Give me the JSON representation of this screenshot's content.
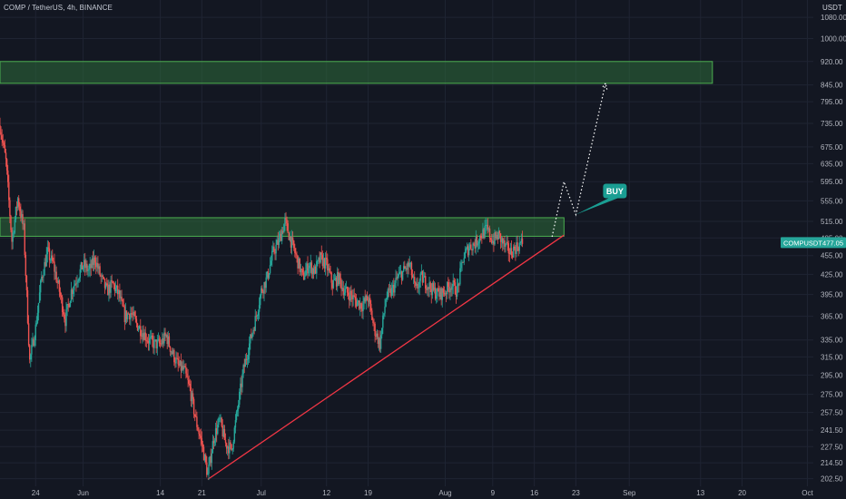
{
  "header": {
    "symbol_line": "COMP / TetherUS, 4h, BINANCE"
  },
  "axis": {
    "currency": "USDT"
  },
  "chart_data": {
    "type": "candlestick",
    "symbol": "COMPUSDT",
    "timeframe": "4h",
    "exchange": "BINANCE",
    "y_scale": "log",
    "ylim": [
      197,
      1150
    ],
    "y_ticks": [
      1080,
      1000,
      920,
      845,
      795,
      735,
      675,
      635,
      595,
      555,
      515,
      485,
      455,
      425,
      395,
      365,
      335,
      315,
      295,
      275,
      257.5,
      241.5,
      227.5,
      214.5,
      202.5
    ],
    "y_tick_labels": [
      "1080.00",
      "1000.00",
      "920.00",
      "845.00",
      "795.00",
      "735.00",
      "675.00",
      "635.00",
      "595.00",
      "555.00",
      "515.00",
      "485.00",
      "455.00",
      "425.00",
      "395.00",
      "365.00",
      "335.00",
      "315.00",
      "295.00",
      "275.00",
      "257.50",
      "241.50",
      "227.50",
      "214.50",
      "202.50"
    ],
    "x_range": [
      "2021-05-18",
      "2021-10-02"
    ],
    "x_ticks": [
      {
        "date": "2021-05-24",
        "label": "24"
      },
      {
        "date": "2021-06-01",
        "label": "Jun"
      },
      {
        "date": "2021-06-14",
        "label": "14"
      },
      {
        "date": "2021-06-21",
        "label": "21"
      },
      {
        "date": "2021-07-01",
        "label": "Jul"
      },
      {
        "date": "2021-07-12",
        "label": "12"
      },
      {
        "date": "2021-07-19",
        "label": "19"
      },
      {
        "date": "2021-08-01",
        "label": "Aug"
      },
      {
        "date": "2021-08-09",
        "label": "9"
      },
      {
        "date": "2021-08-16",
        "label": "16"
      },
      {
        "date": "2021-08-23",
        "label": "23"
      },
      {
        "date": "2021-09-01",
        "label": "Sep"
      },
      {
        "date": "2021-09-13",
        "label": "13"
      },
      {
        "date": "2021-09-20",
        "label": "20"
      },
      {
        "date": "2021-10-01",
        "label": "Oct"
      }
    ],
    "price_path": [
      [
        "2021-05-18",
        730
      ],
      [
        "2021-05-19",
        640
      ],
      [
        "2021-05-20",
        480
      ],
      [
        "2021-05-21",
        560
      ],
      [
        "2021-05-22",
        500
      ],
      [
        "2021-05-23",
        310
      ],
      [
        "2021-05-24",
        350
      ],
      [
        "2021-05-25",
        420
      ],
      [
        "2021-05-26",
        460
      ],
      [
        "2021-05-27",
        440
      ],
      [
        "2021-05-28",
        400
      ],
      [
        "2021-05-29",
        360
      ],
      [
        "2021-05-30",
        400
      ],
      [
        "2021-05-31",
        420
      ],
      [
        "2021-06-01",
        440
      ],
      [
        "2021-06-02",
        430
      ],
      [
        "2021-06-03",
        450
      ],
      [
        "2021-06-04",
        420
      ],
      [
        "2021-06-05",
        400
      ],
      [
        "2021-06-06",
        410
      ],
      [
        "2021-06-07",
        395
      ],
      [
        "2021-06-08",
        365
      ],
      [
        "2021-06-09",
        370
      ],
      [
        "2021-06-10",
        355
      ],
      [
        "2021-06-11",
        345
      ],
      [
        "2021-06-12",
        335
      ],
      [
        "2021-06-13",
        330
      ],
      [
        "2021-06-14",
        330
      ],
      [
        "2021-06-15",
        340
      ],
      [
        "2021-06-16",
        320
      ],
      [
        "2021-06-17",
        305
      ],
      [
        "2021-06-18",
        300
      ],
      [
        "2021-06-19",
        280
      ],
      [
        "2021-06-20",
        250
      ],
      [
        "2021-06-21",
        230
      ],
      [
        "2021-06-22",
        205
      ],
      [
        "2021-06-23",
        235
      ],
      [
        "2021-06-24",
        250
      ],
      [
        "2021-06-25",
        230
      ],
      [
        "2021-06-26",
        225
      ],
      [
        "2021-06-27",
        260
      ],
      [
        "2021-06-28",
        300
      ],
      [
        "2021-06-29",
        330
      ],
      [
        "2021-06-30",
        360
      ],
      [
        "2021-07-01",
        400
      ],
      [
        "2021-07-02",
        420
      ],
      [
        "2021-07-03",
        460
      ],
      [
        "2021-07-04",
        480
      ],
      [
        "2021-07-05",
        515
      ],
      [
        "2021-07-06",
        480
      ],
      [
        "2021-07-07",
        450
      ],
      [
        "2021-07-08",
        420
      ],
      [
        "2021-07-09",
        440
      ],
      [
        "2021-07-10",
        430
      ],
      [
        "2021-07-11",
        450
      ],
      [
        "2021-07-12",
        440
      ],
      [
        "2021-07-13",
        410
      ],
      [
        "2021-07-14",
        420
      ],
      [
        "2021-07-15",
        400
      ],
      [
        "2021-07-16",
        395
      ],
      [
        "2021-07-17",
        385
      ],
      [
        "2021-07-18",
        380
      ],
      [
        "2021-07-19",
        390
      ],
      [
        "2021-07-20",
        350
      ],
      [
        "2021-07-21",
        330
      ],
      [
        "2021-07-22",
        390
      ],
      [
        "2021-07-23",
        400
      ],
      [
        "2021-07-24",
        420
      ],
      [
        "2021-07-25",
        430
      ],
      [
        "2021-07-26",
        440
      ],
      [
        "2021-07-27",
        400
      ],
      [
        "2021-07-28",
        420
      ],
      [
        "2021-07-29",
        410
      ],
      [
        "2021-07-30",
        400
      ],
      [
        "2021-07-31",
        395
      ],
      [
        "2021-08-01",
        400
      ],
      [
        "2021-08-02",
        410
      ],
      [
        "2021-08-03",
        400
      ],
      [
        "2021-08-04",
        450
      ],
      [
        "2021-08-05",
        470
      ],
      [
        "2021-08-06",
        475
      ],
      [
        "2021-08-07",
        490
      ],
      [
        "2021-08-08",
        500
      ],
      [
        "2021-08-09",
        480
      ],
      [
        "2021-08-10",
        490
      ],
      [
        "2021-08-11",
        470
      ],
      [
        "2021-08-12",
        460
      ],
      [
        "2021-08-13",
        470
      ],
      [
        "2021-08-14",
        477
      ]
    ],
    "zones": [
      {
        "from": "2021-05-18",
        "to": "2021-09-15",
        "low": 850,
        "high": 920
      },
      {
        "from": "2021-05-18",
        "to": "2021-08-21",
        "low": 488,
        "high": 522
      }
    ],
    "trendline": {
      "from": [
        "2021-06-22",
        202
      ],
      "to": [
        "2021-08-21",
        490
      ]
    },
    "projection": [
      [
        "2021-08-19",
        487
      ],
      [
        "2021-08-21",
        595
      ],
      [
        "2021-08-23",
        528
      ],
      [
        "2021-08-28",
        850
      ]
    ],
    "annotation": {
      "label": "BUY",
      "anchor": [
        "2021-08-23",
        528
      ]
    },
    "last_price": {
      "symbol": "COMPUSDT",
      "value": "477.05"
    }
  },
  "colors": {
    "background": "#131722",
    "grid": "#1f2433",
    "bull": "#26a69a",
    "bear": "#ef5350",
    "zone_fill": "#2e6b3a",
    "zone_stroke": "#4caf50",
    "trendline": "#f23645",
    "projection": "#ffffff",
    "buy_badge": "#1a9e93",
    "price_tag": "#26a69a"
  }
}
